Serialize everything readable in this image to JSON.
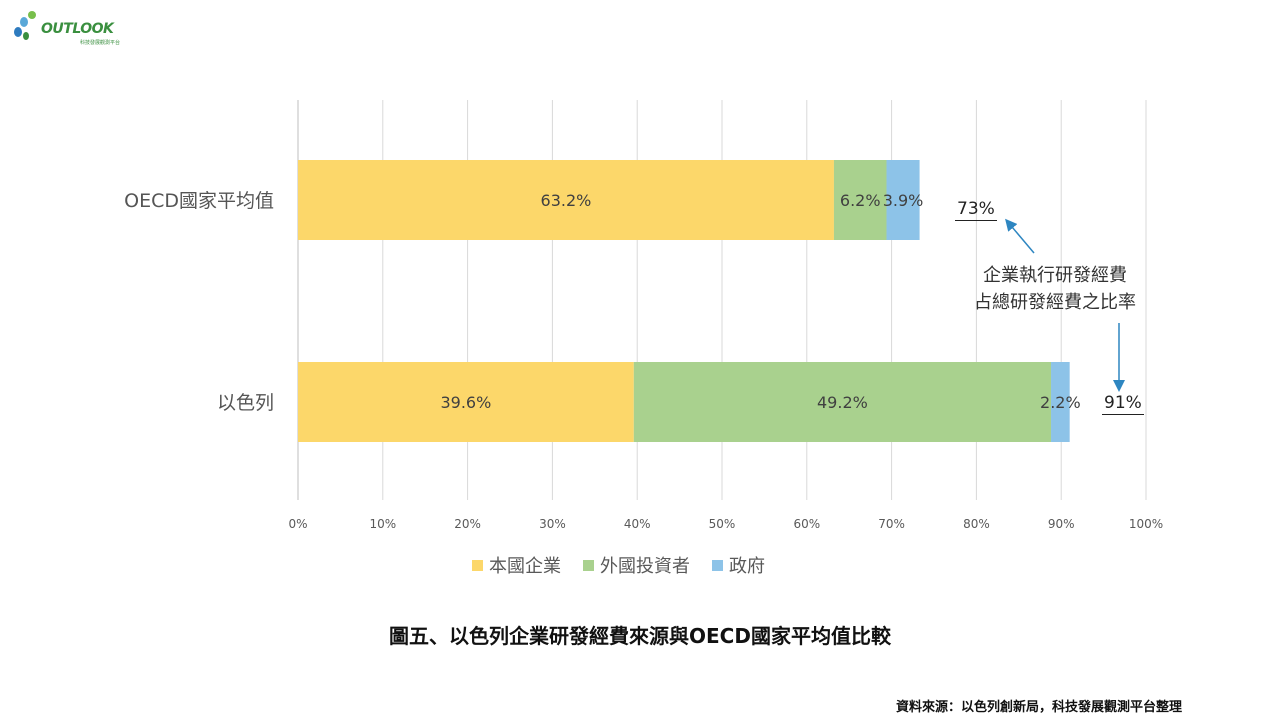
{
  "logo": {
    "name": "OUTLOOK",
    "subtitle": "科技發展觀測平台"
  },
  "chart_data": {
    "type": "bar",
    "orientation": "horizontal",
    "stacked": true,
    "categories": [
      "OECD國家平均值",
      "以色列"
    ],
    "series": [
      {
        "name": "本國企業",
        "color": "#FCD76A",
        "values": [
          63.2,
          39.6
        ]
      },
      {
        "name": "外國投資者",
        "color": "#A9D18E",
        "values": [
          6.2,
          49.2
        ]
      },
      {
        "name": "政府",
        "color": "#8DC3E8",
        "values": [
          3.9,
          2.2
        ]
      }
    ],
    "data_labels": [
      [
        "63.2%",
        "6.2%",
        "3.9%"
      ],
      [
        "39.6%",
        "49.2%",
        "2.2%"
      ]
    ],
    "xlim": [
      0,
      100
    ],
    "xticks": [
      "0%",
      "10%",
      "20%",
      "30%",
      "40%",
      "50%",
      "60%",
      "70%",
      "80%",
      "90%",
      "100%"
    ],
    "grid": "vertical",
    "legend": "bottom",
    "annotations": {
      "totals": [
        "73%",
        "91%"
      ],
      "note_line1": "企業執行研發經費",
      "note_line2": "占總研發經費之比率",
      "arrow_color": "#2E86C1"
    }
  },
  "caption": "圖五、以色列企業研發經費來源與OECD國家平均值比較",
  "source": "資料來源：以色列創新局，科技發展觀測平台整理"
}
